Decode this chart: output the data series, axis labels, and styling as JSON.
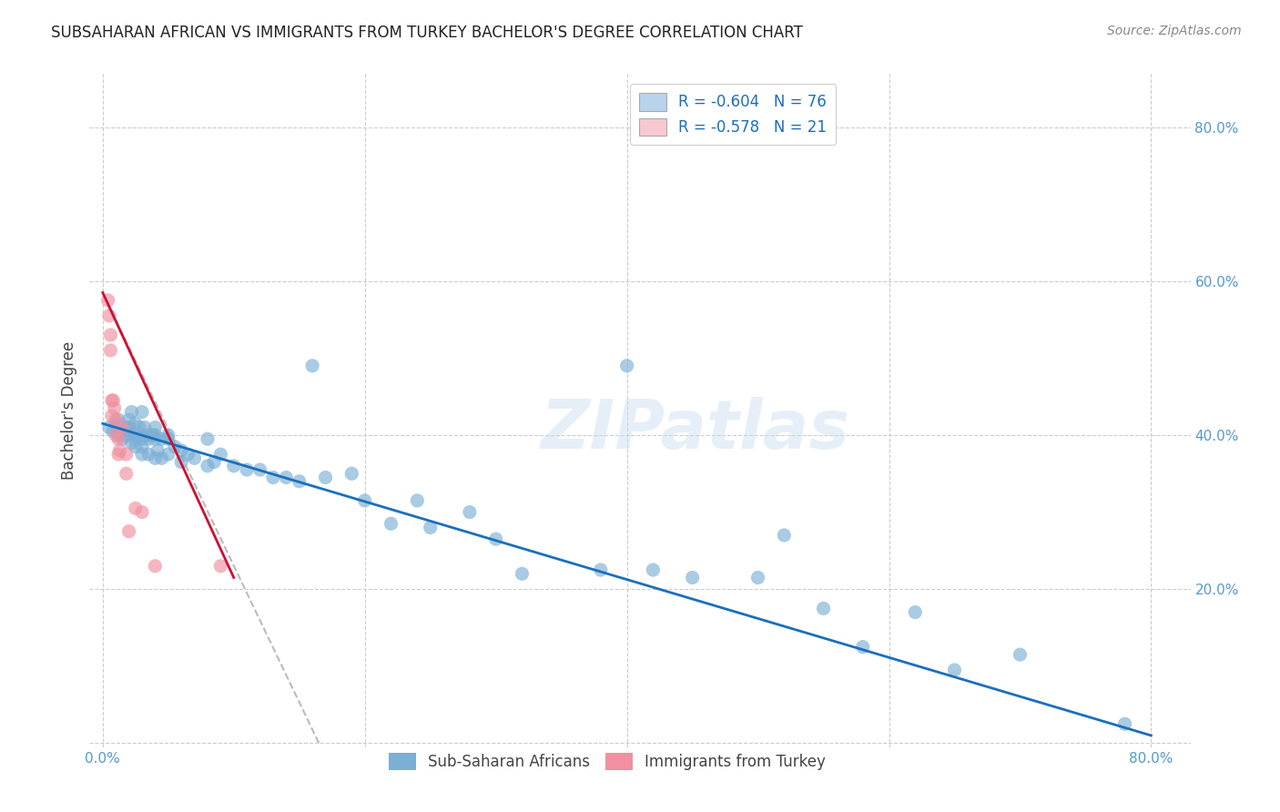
{
  "title": "SUBSAHARAN AFRICAN VS IMMIGRANTS FROM TURKEY BACHELOR'S DEGREE CORRELATION CHART",
  "source": "Source: ZipAtlas.com",
  "ylabel": "Bachelor's Degree",
  "legend_1_label": "R = -0.604   N = 76",
  "legend_2_label": "R = -0.578   N = 21",
  "legend_1_color": "#b8d4ec",
  "legend_2_color": "#f8c8d0",
  "scatter_blue_color": "#7bafd4",
  "scatter_pink_color": "#f090a0",
  "trendline_blue_color": "#1a6fbd",
  "trendline_pink_color": "#cc1133",
  "trendline_gray_color": "#bbbbbb",
  "watermark": "ZIPatlas",
  "blue_points_x": [
    0.005,
    0.008,
    0.01,
    0.012,
    0.012,
    0.015,
    0.015,
    0.018,
    0.018,
    0.02,
    0.02,
    0.02,
    0.022,
    0.022,
    0.025,
    0.025,
    0.025,
    0.025,
    0.028,
    0.03,
    0.03,
    0.03,
    0.03,
    0.03,
    0.032,
    0.035,
    0.035,
    0.035,
    0.038,
    0.04,
    0.04,
    0.04,
    0.04,
    0.042,
    0.045,
    0.045,
    0.05,
    0.05,
    0.05,
    0.055,
    0.06,
    0.06,
    0.065,
    0.07,
    0.08,
    0.08,
    0.085,
    0.09,
    0.1,
    0.11,
    0.12,
    0.13,
    0.14,
    0.15,
    0.16,
    0.17,
    0.19,
    0.2,
    0.22,
    0.24,
    0.25,
    0.28,
    0.3,
    0.32,
    0.38,
    0.4,
    0.42,
    0.45,
    0.5,
    0.52,
    0.55,
    0.58,
    0.62,
    0.65,
    0.7,
    0.78
  ],
  "blue_points_y": [
    0.41,
    0.405,
    0.415,
    0.42,
    0.4,
    0.41,
    0.395,
    0.41,
    0.4,
    0.42,
    0.41,
    0.4,
    0.43,
    0.39,
    0.415,
    0.4,
    0.395,
    0.385,
    0.41,
    0.43,
    0.4,
    0.395,
    0.385,
    0.375,
    0.41,
    0.4,
    0.395,
    0.375,
    0.4,
    0.41,
    0.4,
    0.395,
    0.37,
    0.38,
    0.395,
    0.37,
    0.4,
    0.395,
    0.375,
    0.385,
    0.38,
    0.365,
    0.375,
    0.37,
    0.395,
    0.36,
    0.365,
    0.375,
    0.36,
    0.355,
    0.355,
    0.345,
    0.345,
    0.34,
    0.49,
    0.345,
    0.35,
    0.315,
    0.285,
    0.315,
    0.28,
    0.3,
    0.265,
    0.22,
    0.225,
    0.49,
    0.225,
    0.215,
    0.215,
    0.27,
    0.175,
    0.125,
    0.17,
    0.095,
    0.115,
    0.025
  ],
  "pink_points_x": [
    0.004,
    0.005,
    0.006,
    0.006,
    0.007,
    0.007,
    0.008,
    0.009,
    0.01,
    0.01,
    0.012,
    0.012,
    0.013,
    0.015,
    0.018,
    0.018,
    0.02,
    0.025,
    0.03,
    0.04,
    0.09
  ],
  "pink_points_y": [
    0.575,
    0.555,
    0.53,
    0.51,
    0.445,
    0.425,
    0.445,
    0.435,
    0.42,
    0.4,
    0.395,
    0.375,
    0.38,
    0.41,
    0.375,
    0.35,
    0.275,
    0.305,
    0.3,
    0.23,
    0.23
  ],
  "blue_trend_x": [
    0.0,
    0.8
  ],
  "blue_trend_y": [
    0.415,
    0.01
  ],
  "pink_trend_x": [
    0.0,
    0.1
  ],
  "pink_trend_y": [
    0.585,
    0.215
  ],
  "gray_trend_x": [
    0.0,
    0.165
  ],
  "gray_trend_y": [
    0.585,
    0.0
  ],
  "xlim": [
    -0.01,
    0.83
  ],
  "ylim": [
    -0.005,
    0.87
  ],
  "ytick_right_vals": [
    0.2,
    0.4,
    0.6,
    0.8
  ],
  "ytick_right_labels": [
    "20.0%",
    "40.0%",
    "60.0%",
    "80.0%"
  ],
  "xtick_edge_left": "0.0%",
  "xtick_edge_right": "80.0%",
  "title_fontsize": 12,
  "axis_tick_color": "#5599cc",
  "bottom_legend_label1": "Sub-Saharan Africans",
  "bottom_legend_label2": "Immigrants from Turkey"
}
